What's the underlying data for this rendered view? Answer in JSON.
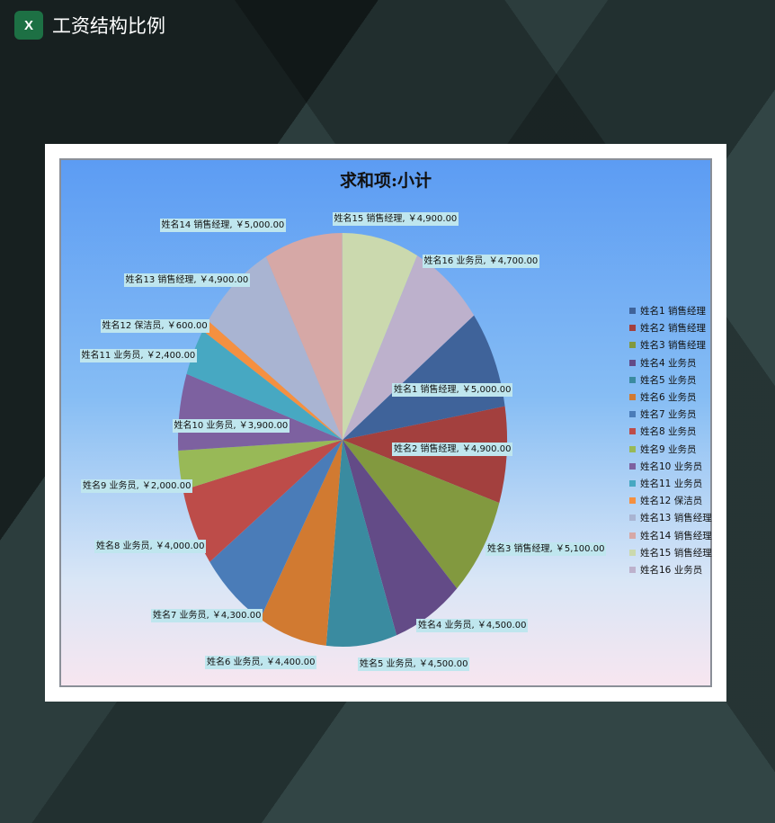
{
  "header": {
    "title": "工资结构比例",
    "icon": "excel-icon"
  },
  "chart_data": {
    "type": "pie",
    "title": "求和项:小计",
    "categories": [
      "姓名1 销售经理",
      "姓名2 销售经理",
      "姓名3 销售经理",
      "姓名4 业务员",
      "姓名5 业务员",
      "姓名6 业务员",
      "姓名7 业务员",
      "姓名8 业务员",
      "姓名9 业务员",
      "姓名10 业务员",
      "姓名11 业务员",
      "姓名12 保洁员",
      "姓名13 销售经理",
      "姓名14 销售经理",
      "姓名15 销售经理",
      "姓名16 业务员"
    ],
    "values": [
      5000,
      4900,
      5100,
      4500,
      4500,
      4400,
      4300,
      4000,
      2000,
      3900,
      2400,
      600,
      4900,
      5000,
      4900,
      4700
    ],
    "data_labels": [
      "姓名1 销售经理, ￥5,000.00",
      "姓名2 销售经理, ￥4,900.00",
      "姓名3 销售经理, ￥5,100.00",
      "姓名4 业务员, ￥4,500.00",
      "姓名5 业务员, ￥4,500.00",
      "姓名6 业务员, ￥4,400.00",
      "姓名7 业务员, ￥4,300.00",
      "姓名8 业务员, ￥4,000.00",
      "姓名9 业务员, ￥2,000.00",
      "姓名10 业务员, ￥3,900.00",
      "姓名11 业务员, ￥2,400.00",
      "姓名12 保洁员, ￥600.00",
      "姓名13 销售经理, ￥4,900.00",
      "姓名14 销售经理, ￥5,000.00",
      "姓名15 销售经理, ￥4,900.00",
      "姓名16 业务员, ￥4,700.00"
    ],
    "colors": [
      "#3f639a",
      "#a3403e",
      "#82993f",
      "#634b87",
      "#3a8ba0",
      "#d17a31",
      "#4a7cb8",
      "#bd4c49",
      "#98b957",
      "#7d61a0",
      "#47a8c2",
      "#f59040",
      "#a9b4d2",
      "#d6a8a6",
      "#cbd9ae",
      "#bdb1cc"
    ],
    "legend_position": "right"
  }
}
